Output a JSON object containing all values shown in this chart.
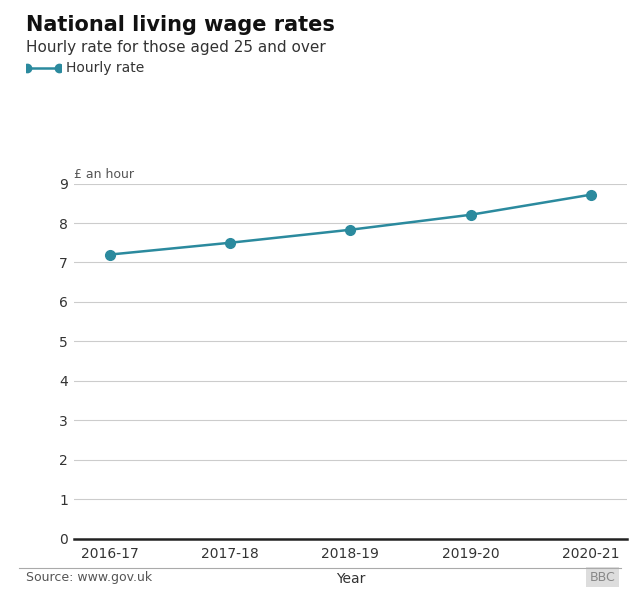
{
  "title": "National living wage rates",
  "subtitle": "Hourly rate for those aged 25 and over",
  "legend_label": "Hourly rate",
  "xlabel": "Year",
  "ylabel": "£ an hour",
  "source": "Source: www.gov.uk",
  "bbc_label": "BBC",
  "categories": [
    "2016-17",
    "2017-18",
    "2018-19",
    "2019-20",
    "2020-21"
  ],
  "values": [
    7.2,
    7.5,
    7.83,
    8.21,
    8.72
  ],
  "line_color": "#2B8A9E",
  "marker_color": "#2B8A9E",
  "ylim": [
    0,
    9
  ],
  "yticks": [
    0,
    1,
    2,
    3,
    4,
    5,
    6,
    7,
    8,
    9
  ],
  "background_color": "#ffffff",
  "grid_color": "#cccccc",
  "title_fontsize": 15,
  "subtitle_fontsize": 11,
  "axis_fontsize": 10,
  "legend_fontsize": 10,
  "source_fontsize": 9
}
